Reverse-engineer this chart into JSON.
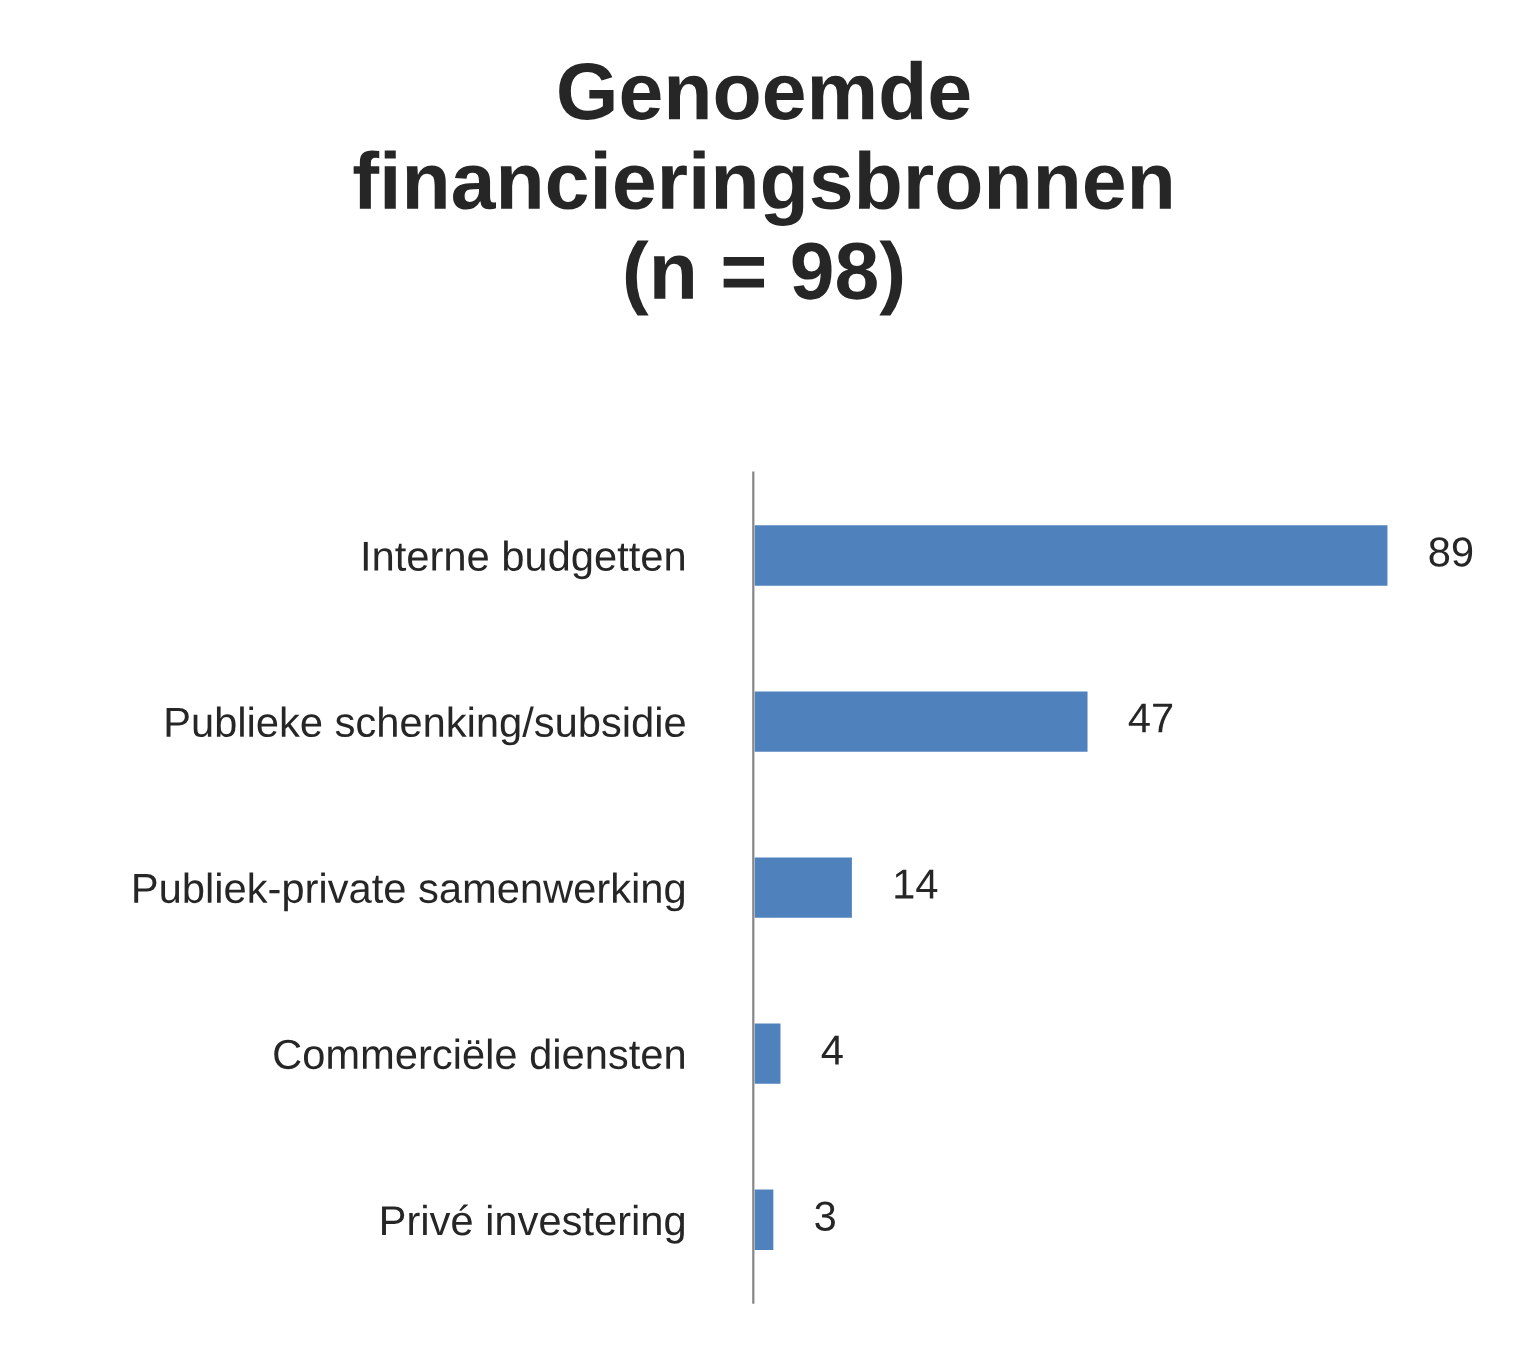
{
  "chart_data": {
    "type": "bar",
    "orientation": "horizontal",
    "title": "Genoemde\nfinancieringsbronnen\n(n = 98)",
    "categories": [
      "Interne budgetten",
      "Publieke schenking/subsidie",
      "Publiek-private samenwerking",
      "Commerciële diensten",
      "Privé investering"
    ],
    "values": [
      89,
      47,
      14,
      4,
      3
    ],
    "color": "#4f81bd",
    "data_labels": true,
    "tick_labels": "y",
    "grid": false,
    "legend": false
  }
}
